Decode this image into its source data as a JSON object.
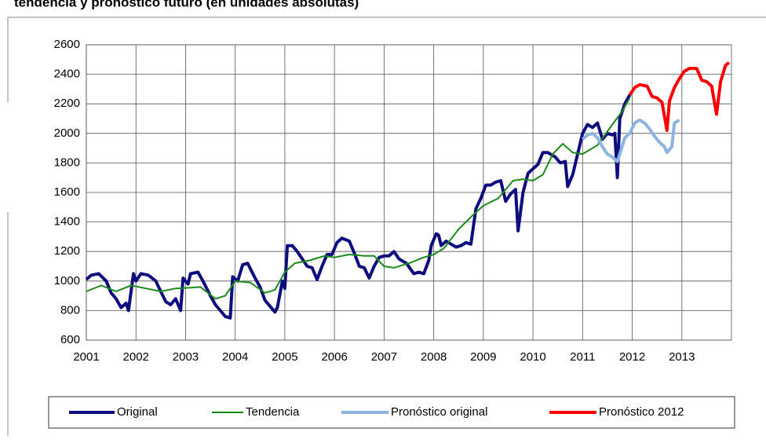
{
  "chart_data": {
    "type": "line",
    "title": "tendencia y pronóstico futuro (en unidades absolutas)",
    "xlim": [
      2001,
      2014
    ],
    "xticks": [
      2001,
      2002,
      2003,
      2004,
      2005,
      2006,
      2007,
      2008,
      2009,
      2010,
      2011,
      2012,
      2013
    ],
    "ylim": [
      600,
      2600
    ],
    "yticks": [
      600,
      800,
      1000,
      1200,
      1400,
      1600,
      1800,
      2000,
      2200,
      2400,
      2600
    ],
    "grid": true,
    "legend": "bottom",
    "series": [
      {
        "name": "Original",
        "color": "#0d0d80",
        "width": 4,
        "x": [
          2001.0,
          2001.1,
          2001.25,
          2001.4,
          2001.5,
          2001.6,
          2001.7,
          2001.8,
          2001.85,
          2001.95,
          2002.0,
          2002.1,
          2002.25,
          2002.4,
          2002.5,
          2002.6,
          2002.7,
          2002.8,
          2002.9,
          2002.95,
          2003.05,
          2003.1,
          2003.25,
          2003.35,
          2003.5,
          2003.6,
          2003.7,
          2003.8,
          2003.9,
          2003.95,
          2004.05,
          2004.15,
          2004.25,
          2004.4,
          2004.5,
          2004.6,
          2004.7,
          2004.8,
          2004.85,
          2004.95,
          2005.0,
          2005.05,
          2005.15,
          2005.25,
          2005.35,
          2005.45,
          2005.55,
          2005.65,
          2005.75,
          2005.85,
          2005.95,
          2006.05,
          2006.15,
          2006.3,
          2006.4,
          2006.5,
          2006.6,
          2006.7,
          2006.8,
          2006.9,
          2007.0,
          2007.1,
          2007.2,
          2007.3,
          2007.45,
          2007.6,
          2007.7,
          2007.8,
          2007.9,
          2007.95,
          2008.05,
          2008.1,
          2008.15,
          2008.25,
          2008.35,
          2008.45,
          2008.55,
          2008.65,
          2008.75,
          2008.85,
          2008.95,
          2009.05,
          2009.15,
          2009.25,
          2009.35,
          2009.45,
          2009.55,
          2009.65,
          2009.7,
          2009.8,
          2009.9,
          2010.0,
          2010.1,
          2010.2,
          2010.3,
          2010.45,
          2010.55,
          2010.65,
          2010.7,
          2010.8,
          2010.9,
          2011.0,
          2011.1,
          2011.2,
          2011.3,
          2011.4,
          2011.5,
          2011.6,
          2011.65,
          2011.7,
          2011.75,
          2011.85,
          2011.95
        ],
        "values": [
          1010,
          1040,
          1050,
          1000,
          920,
          880,
          820,
          850,
          800,
          1050,
          1000,
          1050,
          1040,
          1000,
          930,
          860,
          840,
          880,
          800,
          1020,
          980,
          1050,
          1060,
          1000,
          900,
          840,
          800,
          760,
          750,
          1030,
          1000,
          1110,
          1120,
          1020,
          960,
          870,
          830,
          790,
          820,
          1000,
          950,
          1240,
          1240,
          1200,
          1150,
          1100,
          1090,
          1010,
          1100,
          1180,
          1180,
          1260,
          1290,
          1270,
          1190,
          1100,
          1090,
          1020,
          1100,
          1160,
          1170,
          1170,
          1200,
          1150,
          1120,
          1050,
          1060,
          1050,
          1140,
          1240,
          1320,
          1310,
          1240,
          1270,
          1250,
          1230,
          1240,
          1260,
          1250,
          1490,
          1560,
          1650,
          1650,
          1670,
          1680,
          1540,
          1590,
          1620,
          1340,
          1600,
          1730,
          1760,
          1790,
          1870,
          1870,
          1840,
          1800,
          1810,
          1640,
          1720,
          1860,
          2000,
          2060,
          2040,
          2070,
          1960,
          2000,
          1990,
          2000,
          1700,
          2100,
          2200,
          2260
        ]
      },
      {
        "name": "Tendencia",
        "color": "#1a8a1a",
        "width": 2,
        "x": [
          2001.0,
          2001.3,
          2001.6,
          2001.9,
          2002.2,
          2002.5,
          2002.8,
          2003.1,
          2003.3,
          2003.6,
          2003.8,
          2004.0,
          2004.3,
          2004.6,
          2004.8,
          2005.0,
          2005.2,
          2005.5,
          2005.8,
          2006.0,
          2006.3,
          2006.6,
          2006.8,
          2007.0,
          2007.2,
          2007.5,
          2007.8,
          2008.0,
          2008.2,
          2008.5,
          2008.8,
          2009.0,
          2009.3,
          2009.6,
          2009.8,
          2010.0,
          2010.2,
          2010.4,
          2010.6,
          2010.8,
          2011.0,
          2011.3,
          2011.6,
          2011.8,
          2011.95
        ],
        "values": [
          930,
          970,
          930,
          970,
          950,
          930,
          950,
          955,
          960,
          880,
          900,
          1000,
          990,
          920,
          940,
          1060,
          1120,
          1140,
          1170,
          1160,
          1180,
          1170,
          1170,
          1100,
          1090,
          1120,
          1160,
          1180,
          1220,
          1350,
          1450,
          1510,
          1560,
          1680,
          1690,
          1680,
          1720,
          1860,
          1930,
          1870,
          1860,
          1920,
          2060,
          2150,
          2240
        ]
      },
      {
        "name": "Pronóstico original",
        "color": "#8db3e2",
        "width": 4,
        "x": [
          2011.0,
          2011.1,
          2011.2,
          2011.3,
          2011.4,
          2011.5,
          2011.6,
          2011.7,
          2011.75,
          2011.85,
          2011.95,
          2012.05,
          2012.15,
          2012.25,
          2012.35,
          2012.45,
          2012.55,
          2012.65,
          2012.7,
          2012.8,
          2012.85,
          2012.95
        ],
        "values": [
          1960,
          1990,
          2000,
          1970,
          1910,
          1860,
          1840,
          1810,
          1860,
          1970,
          2000,
          2070,
          2090,
          2070,
          2030,
          1980,
          1940,
          1910,
          1870,
          1910,
          2070,
          2090
        ]
      },
      {
        "name": "Pronóstico 2012",
        "color": "#ff0000",
        "width": 4,
        "x": [
          2011.95,
          2012.05,
          2012.15,
          2012.3,
          2012.4,
          2012.5,
          2012.6,
          2012.7,
          2012.75,
          2012.85,
          2012.95,
          2013.05,
          2013.15,
          2013.3,
          2013.4,
          2013.5,
          2013.6,
          2013.7,
          2013.78,
          2013.88,
          2013.95
        ],
        "values": [
          2260,
          2310,
          2330,
          2320,
          2250,
          2240,
          2210,
          2020,
          2220,
          2310,
          2370,
          2420,
          2440,
          2440,
          2360,
          2350,
          2320,
          2130,
          2350,
          2460,
          2480
        ]
      }
    ]
  }
}
